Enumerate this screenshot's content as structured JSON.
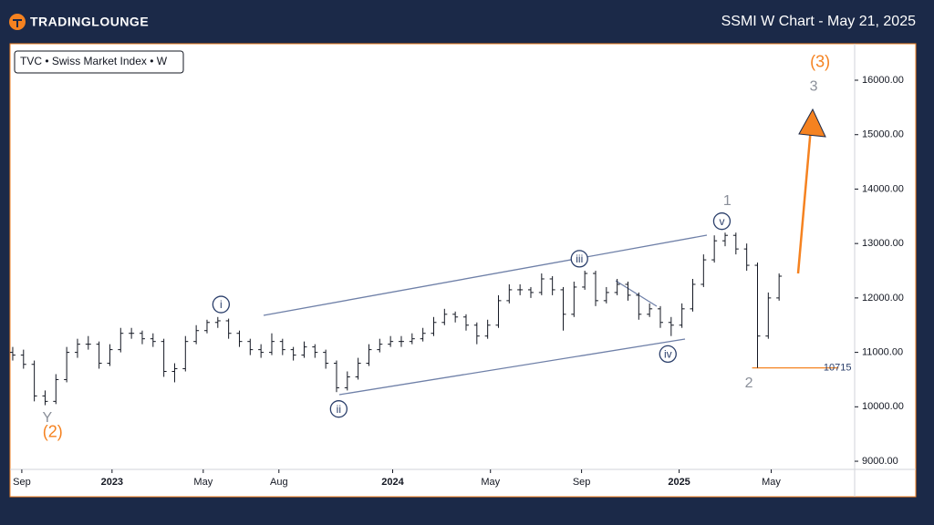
{
  "header": {
    "brand": "TradingLounge",
    "title": "SSMI W Chart - May 21, 2025"
  },
  "chart_data": {
    "type": "ohlc",
    "legend": "TVC • Swiss Market Index • W",
    "color": "#131722",
    "xlim": [
      -0.25,
      78
    ],
    "ylim": [
      8850,
      16670
    ],
    "xticks": [
      {
        "value": 0.84,
        "label": "Sep"
      },
      {
        "value": 9.2,
        "label": "2023"
      },
      {
        "value": 17.65,
        "label": "May"
      },
      {
        "value": 24.66,
        "label": "Aug"
      },
      {
        "value": 35.2,
        "label": "2024"
      },
      {
        "value": 44.26,
        "label": "May"
      },
      {
        "value": 52.7,
        "label": "Sep"
      },
      {
        "value": 61.74,
        "label": "2025"
      },
      {
        "value": 70.27,
        "label": "May"
      }
    ],
    "yticks": [
      {
        "value": 9000,
        "label": "9000.00"
      },
      {
        "value": 10000,
        "label": "10000.00"
      },
      {
        "value": 11000,
        "label": "11000.00"
      },
      {
        "value": 12000,
        "label": "12000.00"
      },
      {
        "value": 13000,
        "label": "13000.00"
      },
      {
        "value": 14000,
        "label": "14000.00"
      },
      {
        "value": 15000,
        "label": "15000.00"
      },
      {
        "value": 16000,
        "label": "16000.00"
      }
    ],
    "level": {
      "value": 10715,
      "color": "#f58220"
    },
    "ohlc": [
      [
        11000,
        11100,
        10850,
        10950
      ],
      [
        10950,
        11050,
        10700,
        10780
      ],
      [
        10780,
        10850,
        10100,
        10200
      ],
      [
        10200,
        10300,
        10030,
        10100
      ],
      [
        10100,
        10600,
        10050,
        10500
      ],
      [
        10500,
        11100,
        10450,
        11000
      ],
      [
        11000,
        11250,
        10900,
        11150
      ],
      [
        11150,
        11300,
        11050,
        11150
      ],
      [
        11150,
        11200,
        10700,
        10800
      ],
      [
        10800,
        11150,
        10750,
        11050
      ],
      [
        11050,
        11450,
        11000,
        11350
      ],
      [
        11350,
        11450,
        11250,
        11350
      ],
      [
        11350,
        11400,
        11150,
        11250
      ],
      [
        11250,
        11350,
        11100,
        11200
      ],
      [
        11200,
        11250,
        10550,
        10650
      ],
      [
        10650,
        10800,
        10450,
        10700
      ],
      [
        10700,
        11300,
        10650,
        11200
      ],
      [
        11200,
        11500,
        11150,
        11400
      ],
      [
        11400,
        11600,
        11350,
        11550
      ],
      [
        11550,
        11650,
        11450,
        11580
      ],
      [
        11580,
        11620,
        11250,
        11350
      ],
      [
        11350,
        11400,
        11100,
        11200
      ],
      [
        11200,
        11250,
        10950,
        11050
      ],
      [
        11050,
        11150,
        10900,
        11000
      ],
      [
        11000,
        11350,
        10950,
        11200
      ],
      [
        11200,
        11250,
        10950,
        11050
      ],
      [
        11050,
        11100,
        10850,
        10950
      ],
      [
        10950,
        11200,
        10900,
        11100
      ],
      [
        11100,
        11150,
        10900,
        11000
      ],
      [
        11000,
        11050,
        10700,
        10800
      ],
      [
        10800,
        10850,
        10270,
        10350
      ],
      [
        10350,
        10650,
        10300,
        10550
      ],
      [
        10550,
        10900,
        10500,
        10800
      ],
      [
        10800,
        11150,
        10750,
        11050
      ],
      [
        11050,
        11250,
        11000,
        11150
      ],
      [
        11150,
        11300,
        11100,
        11200
      ],
      [
        11200,
        11300,
        11100,
        11200
      ],
      [
        11200,
        11350,
        11150,
        11250
      ],
      [
        11250,
        11450,
        11200,
        11350
      ],
      [
        11350,
        11650,
        11300,
        11550
      ],
      [
        11550,
        11800,
        11500,
        11700
      ],
      [
        11700,
        11750,
        11550,
        11650
      ],
      [
        11650,
        11700,
        11400,
        11500
      ],
      [
        11500,
        11550,
        11150,
        11300
      ],
      [
        11300,
        11600,
        11250,
        11500
      ],
      [
        11500,
        12050,
        11450,
        11950
      ],
      [
        11950,
        12250,
        11900,
        12150
      ],
      [
        12150,
        12250,
        12050,
        12150
      ],
      [
        12150,
        12200,
        12000,
        12100
      ],
      [
        12100,
        12450,
        12050,
        12350
      ],
      [
        12350,
        12400,
        12050,
        12150
      ],
      [
        12150,
        12200,
        11400,
        11700
      ],
      [
        11700,
        12300,
        11650,
        12200
      ],
      [
        12200,
        12500,
        12150,
        12450
      ],
      [
        12450,
        12500,
        11850,
        11950
      ],
      [
        11950,
        12200,
        11900,
        12100
      ],
      [
        12100,
        12350,
        12050,
        12250
      ],
      [
        12250,
        12300,
        11950,
        12050
      ],
      [
        12050,
        12100,
        11600,
        11700
      ],
      [
        11700,
        11900,
        11650,
        11800
      ],
      [
        11800,
        11850,
        11450,
        11550
      ],
      [
        11550,
        11650,
        11300,
        11500
      ],
      [
        11500,
        11900,
        11450,
        11800
      ],
      [
        11800,
        12350,
        11750,
        12250
      ],
      [
        12250,
        12800,
        12200,
        12700
      ],
      [
        12700,
        13150,
        12650,
        13050
      ],
      [
        13050,
        13200,
        12950,
        13150
      ],
      [
        13150,
        13200,
        12800,
        12900
      ],
      [
        12900,
        13000,
        12500,
        12600
      ],
      [
        12600,
        12650,
        10715,
        11300
      ],
      [
        11300,
        12100,
        11250,
        12000
      ],
      [
        12000,
        12450,
        11950,
        12400
      ]
    ],
    "annotations": [
      {
        "text": "i",
        "style": "circle",
        "x": 19.3,
        "y": 11880
      },
      {
        "text": "ii",
        "style": "circle",
        "x": 30.2,
        "y": 9960
      },
      {
        "text": "iii",
        "style": "circle",
        "x": 52.5,
        "y": 12720
      },
      {
        "text": "iv",
        "style": "circle",
        "x": 60.7,
        "y": 10970
      },
      {
        "text": "v",
        "style": "circle",
        "x": 65.7,
        "y": 13410
      },
      {
        "text": "1",
        "style": "gray",
        "x": 66.2,
        "y": 13780
      },
      {
        "text": "2",
        "style": "gray",
        "x": 68.2,
        "y": 10430
      },
      {
        "text": "3",
        "style": "gray",
        "x": 74.2,
        "y": 15880
      },
      {
        "text": "(3)",
        "style": "orange",
        "x": 74.8,
        "y": 16320
      },
      {
        "text": "Y",
        "style": "gray",
        "x": 3.2,
        "y": 9790
      },
      {
        "text": "(2)",
        "style": "orange",
        "x": 3.7,
        "y": 9520
      }
    ]
  }
}
